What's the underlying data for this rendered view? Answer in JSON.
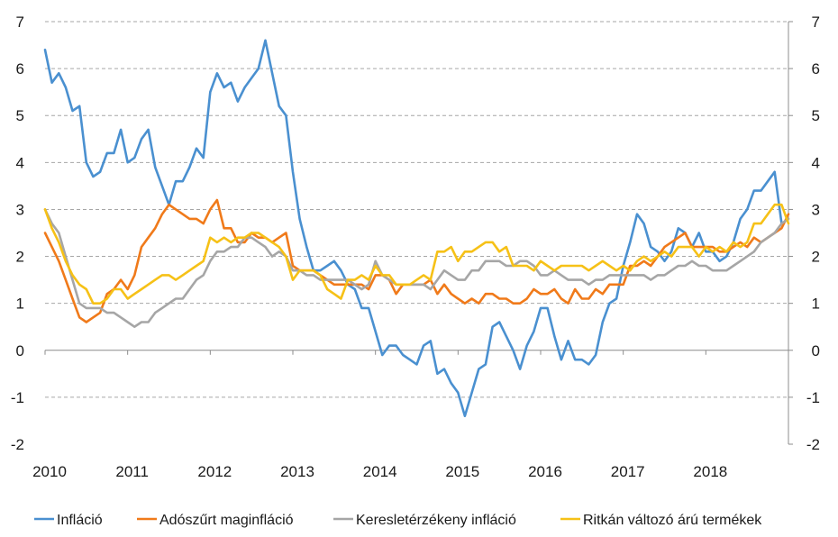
{
  "chart_data": {
    "type": "line",
    "title": "",
    "xlabel": "",
    "ylabel": "",
    "ylim": [
      -2,
      7
    ],
    "y_ticks": [
      -2,
      -1,
      0,
      1,
      2,
      3,
      4,
      5,
      6,
      7
    ],
    "right_axis_mirrors_left": true,
    "x_range": [
      2010.0,
      2019.0
    ],
    "x_ticks": [
      "2010",
      "2011",
      "2012",
      "2013",
      "2014",
      "2015",
      "2016",
      "2017",
      "2018"
    ],
    "grid": "horizontal",
    "legend_position": "bottom",
    "series": [
      {
        "name": "Infláció",
        "color": "#4a90d0",
        "x": [
          2010.0,
          2010.083,
          2010.167,
          2010.25,
          2010.333,
          2010.417,
          2010.5,
          2010.583,
          2010.667,
          2010.75,
          2010.833,
          2010.917,
          2011.0,
          2011.083,
          2011.167,
          2011.25,
          2011.333,
          2011.417,
          2011.5,
          2011.583,
          2011.667,
          2011.75,
          2011.833,
          2011.917,
          2012.0,
          2012.083,
          2012.167,
          2012.25,
          2012.333,
          2012.417,
          2012.5,
          2012.583,
          2012.667,
          2012.75,
          2012.833,
          2012.917,
          2013.0,
          2013.083,
          2013.167,
          2013.25,
          2013.333,
          2013.417,
          2013.5,
          2013.583,
          2013.667,
          2013.75,
          2013.833,
          2013.917,
          2014.0,
          2014.083,
          2014.167,
          2014.25,
          2014.333,
          2014.417,
          2014.5,
          2014.583,
          2014.667,
          2014.75,
          2014.833,
          2014.917,
          2015.0,
          2015.083,
          2015.167,
          2015.25,
          2015.333,
          2015.417,
          2015.5,
          2015.583,
          2015.667,
          2015.75,
          2015.833,
          2015.917,
          2016.0,
          2016.083,
          2016.167,
          2016.25,
          2016.333,
          2016.417,
          2016.5,
          2016.583,
          2016.667,
          2016.75,
          2016.833,
          2016.917,
          2017.0,
          2017.083,
          2017.167,
          2017.25,
          2017.333,
          2017.417,
          2017.5,
          2017.583,
          2017.667,
          2017.75,
          2017.833,
          2017.917,
          2018.0,
          2018.083,
          2018.167,
          2018.25,
          2018.333,
          2018.417,
          2018.5,
          2018.583,
          2018.667,
          2018.75,
          2018.833,
          2018.917
        ],
        "y": [
          6.4,
          5.7,
          5.9,
          5.6,
          5.1,
          5.2,
          4.0,
          3.7,
          3.8,
          4.2,
          4.2,
          4.7,
          4.0,
          4.1,
          4.5,
          4.7,
          3.9,
          3.5,
          3.1,
          3.6,
          3.6,
          3.9,
          4.3,
          4.1,
          5.5,
          5.9,
          5.6,
          5.7,
          5.3,
          5.6,
          5.8,
          6.0,
          6.6,
          5.9,
          5.2,
          5.0,
          3.8,
          2.8,
          2.2,
          1.7,
          1.7,
          1.8,
          1.9,
          1.7,
          1.4,
          1.3,
          0.9,
          0.9,
          0.4,
          -0.1,
          0.1,
          0.1,
          -0.1,
          -0.2,
          -0.3,
          0.1,
          0.2,
          -0.5,
          -0.4,
          -0.7,
          -0.9,
          -1.4,
          -0.9,
          -0.4,
          -0.3,
          0.5,
          0.6,
          0.3,
          0.0,
          -0.4,
          0.1,
          0.4,
          0.9,
          0.9,
          0.3,
          -0.2,
          0.2,
          -0.2,
          -0.2,
          -0.3,
          -0.1,
          0.6,
          1.0,
          1.1,
          1.8,
          2.3,
          2.9,
          2.7,
          2.2,
          2.1,
          1.9,
          2.1,
          2.6,
          2.5,
          2.2,
          2.5,
          2.1,
          2.1,
          1.9,
          2.0,
          2.3,
          2.8,
          3.0,
          3.4,
          3.4,
          3.6,
          3.8,
          2.7
        ]
      },
      {
        "name": "Adószűrt maginfláció",
        "color": "#f07a1a",
        "x": [
          2010.0,
          2010.083,
          2010.167,
          2010.25,
          2010.333,
          2010.417,
          2010.5,
          2010.583,
          2010.667,
          2010.75,
          2010.833,
          2010.917,
          2011.0,
          2011.083,
          2011.167,
          2011.25,
          2011.333,
          2011.417,
          2011.5,
          2011.583,
          2011.667,
          2011.75,
          2011.833,
          2011.917,
          2012.0,
          2012.083,
          2012.167,
          2012.25,
          2012.333,
          2012.417,
          2012.5,
          2012.583,
          2012.667,
          2012.75,
          2012.833,
          2012.917,
          2013.0,
          2013.083,
          2013.167,
          2013.25,
          2013.333,
          2013.417,
          2013.5,
          2013.583,
          2013.667,
          2013.75,
          2013.833,
          2013.917,
          2014.0,
          2014.083,
          2014.167,
          2014.25,
          2014.333,
          2014.417,
          2014.5,
          2014.583,
          2014.667,
          2014.75,
          2014.833,
          2014.917,
          2015.0,
          2015.083,
          2015.167,
          2015.25,
          2015.333,
          2015.417,
          2015.5,
          2015.583,
          2015.667,
          2015.75,
          2015.833,
          2015.917,
          2016.0,
          2016.083,
          2016.167,
          2016.25,
          2016.333,
          2016.417,
          2016.5,
          2016.583,
          2016.667,
          2016.75,
          2016.833,
          2016.917,
          2017.0,
          2017.083,
          2017.167,
          2017.25,
          2017.333,
          2017.417,
          2017.5,
          2017.583,
          2017.667,
          2017.75,
          2017.833,
          2017.917,
          2018.0,
          2018.083,
          2018.167,
          2018.25,
          2018.333,
          2018.417,
          2018.5,
          2018.583,
          2018.667,
          2018.75,
          2018.833,
          2018.917,
          2019.0
        ],
        "y": [
          2.5,
          2.2,
          1.9,
          1.5,
          1.1,
          0.7,
          0.6,
          0.7,
          0.8,
          1.2,
          1.3,
          1.5,
          1.3,
          1.6,
          2.2,
          2.4,
          2.6,
          2.9,
          3.1,
          3.0,
          2.9,
          2.8,
          2.8,
          2.7,
          3.0,
          3.2,
          2.6,
          2.6,
          2.3,
          2.3,
          2.5,
          2.4,
          2.4,
          2.3,
          2.4,
          2.5,
          1.8,
          1.7,
          1.7,
          1.7,
          1.6,
          1.5,
          1.4,
          1.4,
          1.4,
          1.4,
          1.4,
          1.3,
          1.6,
          1.6,
          1.5,
          1.2,
          1.4,
          1.4,
          1.4,
          1.4,
          1.5,
          1.2,
          1.4,
          1.2,
          1.1,
          1.0,
          1.1,
          1.0,
          1.2,
          1.2,
          1.1,
          1.1,
          1.0,
          1.0,
          1.1,
          1.3,
          1.2,
          1.2,
          1.3,
          1.1,
          1.0,
          1.3,
          1.1,
          1.1,
          1.3,
          1.2,
          1.4,
          1.4,
          1.4,
          1.8,
          1.8,
          1.9,
          1.8,
          2.0,
          2.2,
          2.3,
          2.4,
          2.5,
          2.2,
          2.2,
          2.2,
          2.2,
          2.1,
          2.1,
          2.2,
          2.3,
          2.2,
          2.4,
          2.3,
          2.4,
          2.5,
          2.6,
          2.9
        ]
      },
      {
        "name": "Keresletérzékeny infláció",
        "color": "#a6a6a6",
        "x": [
          2010.0,
          2010.083,
          2010.167,
          2010.25,
          2010.333,
          2010.417,
          2010.5,
          2010.583,
          2010.667,
          2010.75,
          2010.833,
          2010.917,
          2011.0,
          2011.083,
          2011.167,
          2011.25,
          2011.333,
          2011.417,
          2011.5,
          2011.583,
          2011.667,
          2011.75,
          2011.833,
          2011.917,
          2012.0,
          2012.083,
          2012.167,
          2012.25,
          2012.333,
          2012.417,
          2012.5,
          2012.583,
          2012.667,
          2012.75,
          2012.833,
          2012.917,
          2013.0,
          2013.083,
          2013.167,
          2013.25,
          2013.333,
          2013.417,
          2013.5,
          2013.583,
          2013.667,
          2013.75,
          2013.833,
          2013.917,
          2014.0,
          2014.083,
          2014.167,
          2014.25,
          2014.333,
          2014.417,
          2014.5,
          2014.583,
          2014.667,
          2014.75,
          2014.833,
          2014.917,
          2015.0,
          2015.083,
          2015.167,
          2015.25,
          2015.333,
          2015.417,
          2015.5,
          2015.583,
          2015.667,
          2015.75,
          2015.833,
          2015.917,
          2016.0,
          2016.083,
          2016.167,
          2016.25,
          2016.333,
          2016.417,
          2016.5,
          2016.583,
          2016.667,
          2016.75,
          2016.833,
          2016.917,
          2017.0,
          2017.083,
          2017.167,
          2017.25,
          2017.333,
          2017.417,
          2017.5,
          2017.583,
          2017.667,
          2017.75,
          2017.833,
          2017.917,
          2018.0,
          2018.083,
          2018.167,
          2018.25,
          2018.333,
          2018.417,
          2018.5,
          2018.583,
          2018.667,
          2018.75,
          2018.833,
          2018.917,
          2019.0
        ],
        "y": [
          3.0,
          2.7,
          2.5,
          2.0,
          1.5,
          1.0,
          0.9,
          0.9,
          0.9,
          0.8,
          0.8,
          0.7,
          0.6,
          0.5,
          0.6,
          0.6,
          0.8,
          0.9,
          1.0,
          1.1,
          1.1,
          1.3,
          1.5,
          1.6,
          1.9,
          2.1,
          2.1,
          2.2,
          2.2,
          2.4,
          2.4,
          2.3,
          2.2,
          2.0,
          2.1,
          2.0,
          1.7,
          1.7,
          1.6,
          1.6,
          1.5,
          1.5,
          1.5,
          1.5,
          1.5,
          1.4,
          1.3,
          1.4,
          1.9,
          1.6,
          1.5,
          1.4,
          1.4,
          1.4,
          1.4,
          1.4,
          1.3,
          1.5,
          1.7,
          1.6,
          1.5,
          1.5,
          1.7,
          1.7,
          1.9,
          1.9,
          1.9,
          1.8,
          1.8,
          1.9,
          1.9,
          1.8,
          1.6,
          1.6,
          1.7,
          1.6,
          1.5,
          1.5,
          1.5,
          1.4,
          1.5,
          1.5,
          1.6,
          1.6,
          1.6,
          1.6,
          1.6,
          1.6,
          1.5,
          1.6,
          1.6,
          1.7,
          1.8,
          1.8,
          1.9,
          1.8,
          1.8,
          1.7,
          1.7,
          1.7,
          1.8,
          1.9,
          2.0,
          2.1,
          2.3,
          2.4,
          2.5,
          2.7,
          2.8
        ]
      },
      {
        "name": "Ritkán változó árú termékek",
        "color": "#f6c117",
        "x": [
          2010.0,
          2010.083,
          2010.167,
          2010.25,
          2010.333,
          2010.417,
          2010.5,
          2010.583,
          2010.667,
          2010.75,
          2010.833,
          2010.917,
          2011.0,
          2011.083,
          2011.167,
          2011.25,
          2011.333,
          2011.417,
          2011.5,
          2011.583,
          2011.667,
          2011.75,
          2011.833,
          2011.917,
          2012.0,
          2012.083,
          2012.167,
          2012.25,
          2012.333,
          2012.417,
          2012.5,
          2012.583,
          2012.667,
          2012.75,
          2012.833,
          2012.917,
          2013.0,
          2013.083,
          2013.167,
          2013.25,
          2013.333,
          2013.417,
          2013.5,
          2013.583,
          2013.667,
          2013.75,
          2013.833,
          2013.917,
          2014.0,
          2014.083,
          2014.167,
          2014.25,
          2014.333,
          2014.417,
          2014.5,
          2014.583,
          2014.667,
          2014.75,
          2014.833,
          2014.917,
          2015.0,
          2015.083,
          2015.167,
          2015.25,
          2015.333,
          2015.417,
          2015.5,
          2015.583,
          2015.667,
          2015.75,
          2015.833,
          2015.917,
          2016.0,
          2016.083,
          2016.167,
          2016.25,
          2016.333,
          2016.417,
          2016.5,
          2016.583,
          2016.667,
          2016.75,
          2016.833,
          2016.917,
          2017.0,
          2017.083,
          2017.167,
          2017.25,
          2017.333,
          2017.417,
          2017.5,
          2017.583,
          2017.667,
          2017.75,
          2017.833,
          2017.917,
          2018.0,
          2018.083,
          2018.167,
          2018.25,
          2018.333,
          2018.417,
          2018.5,
          2018.583,
          2018.667,
          2018.75,
          2018.833,
          2018.917,
          2019.0
        ],
        "y": [
          3.0,
          2.6,
          2.3,
          1.9,
          1.6,
          1.4,
          1.3,
          1.0,
          1.0,
          1.1,
          1.3,
          1.3,
          1.1,
          1.2,
          1.3,
          1.4,
          1.5,
          1.6,
          1.6,
          1.5,
          1.6,
          1.7,
          1.8,
          1.9,
          2.4,
          2.3,
          2.4,
          2.3,
          2.4,
          2.4,
          2.5,
          2.5,
          2.4,
          2.3,
          2.2,
          2.0,
          1.5,
          1.7,
          1.7,
          1.7,
          1.6,
          1.3,
          1.2,
          1.1,
          1.5,
          1.5,
          1.6,
          1.5,
          1.8,
          1.6,
          1.6,
          1.4,
          1.4,
          1.4,
          1.5,
          1.6,
          1.5,
          2.1,
          2.1,
          2.2,
          1.9,
          2.1,
          2.1,
          2.2,
          2.3,
          2.3,
          2.1,
          2.2,
          1.8,
          1.8,
          1.8,
          1.7,
          1.9,
          1.8,
          1.7,
          1.8,
          1.8,
          1.8,
          1.8,
          1.7,
          1.8,
          1.9,
          1.8,
          1.7,
          1.8,
          1.7,
          1.9,
          2.0,
          1.9,
          2.0,
          2.1,
          2.0,
          2.2,
          2.2,
          2.2,
          2.0,
          2.2,
          2.1,
          2.2,
          2.1,
          2.3,
          2.2,
          2.3,
          2.7,
          2.7,
          2.9,
          3.1,
          3.1,
          2.7
        ]
      }
    ]
  }
}
